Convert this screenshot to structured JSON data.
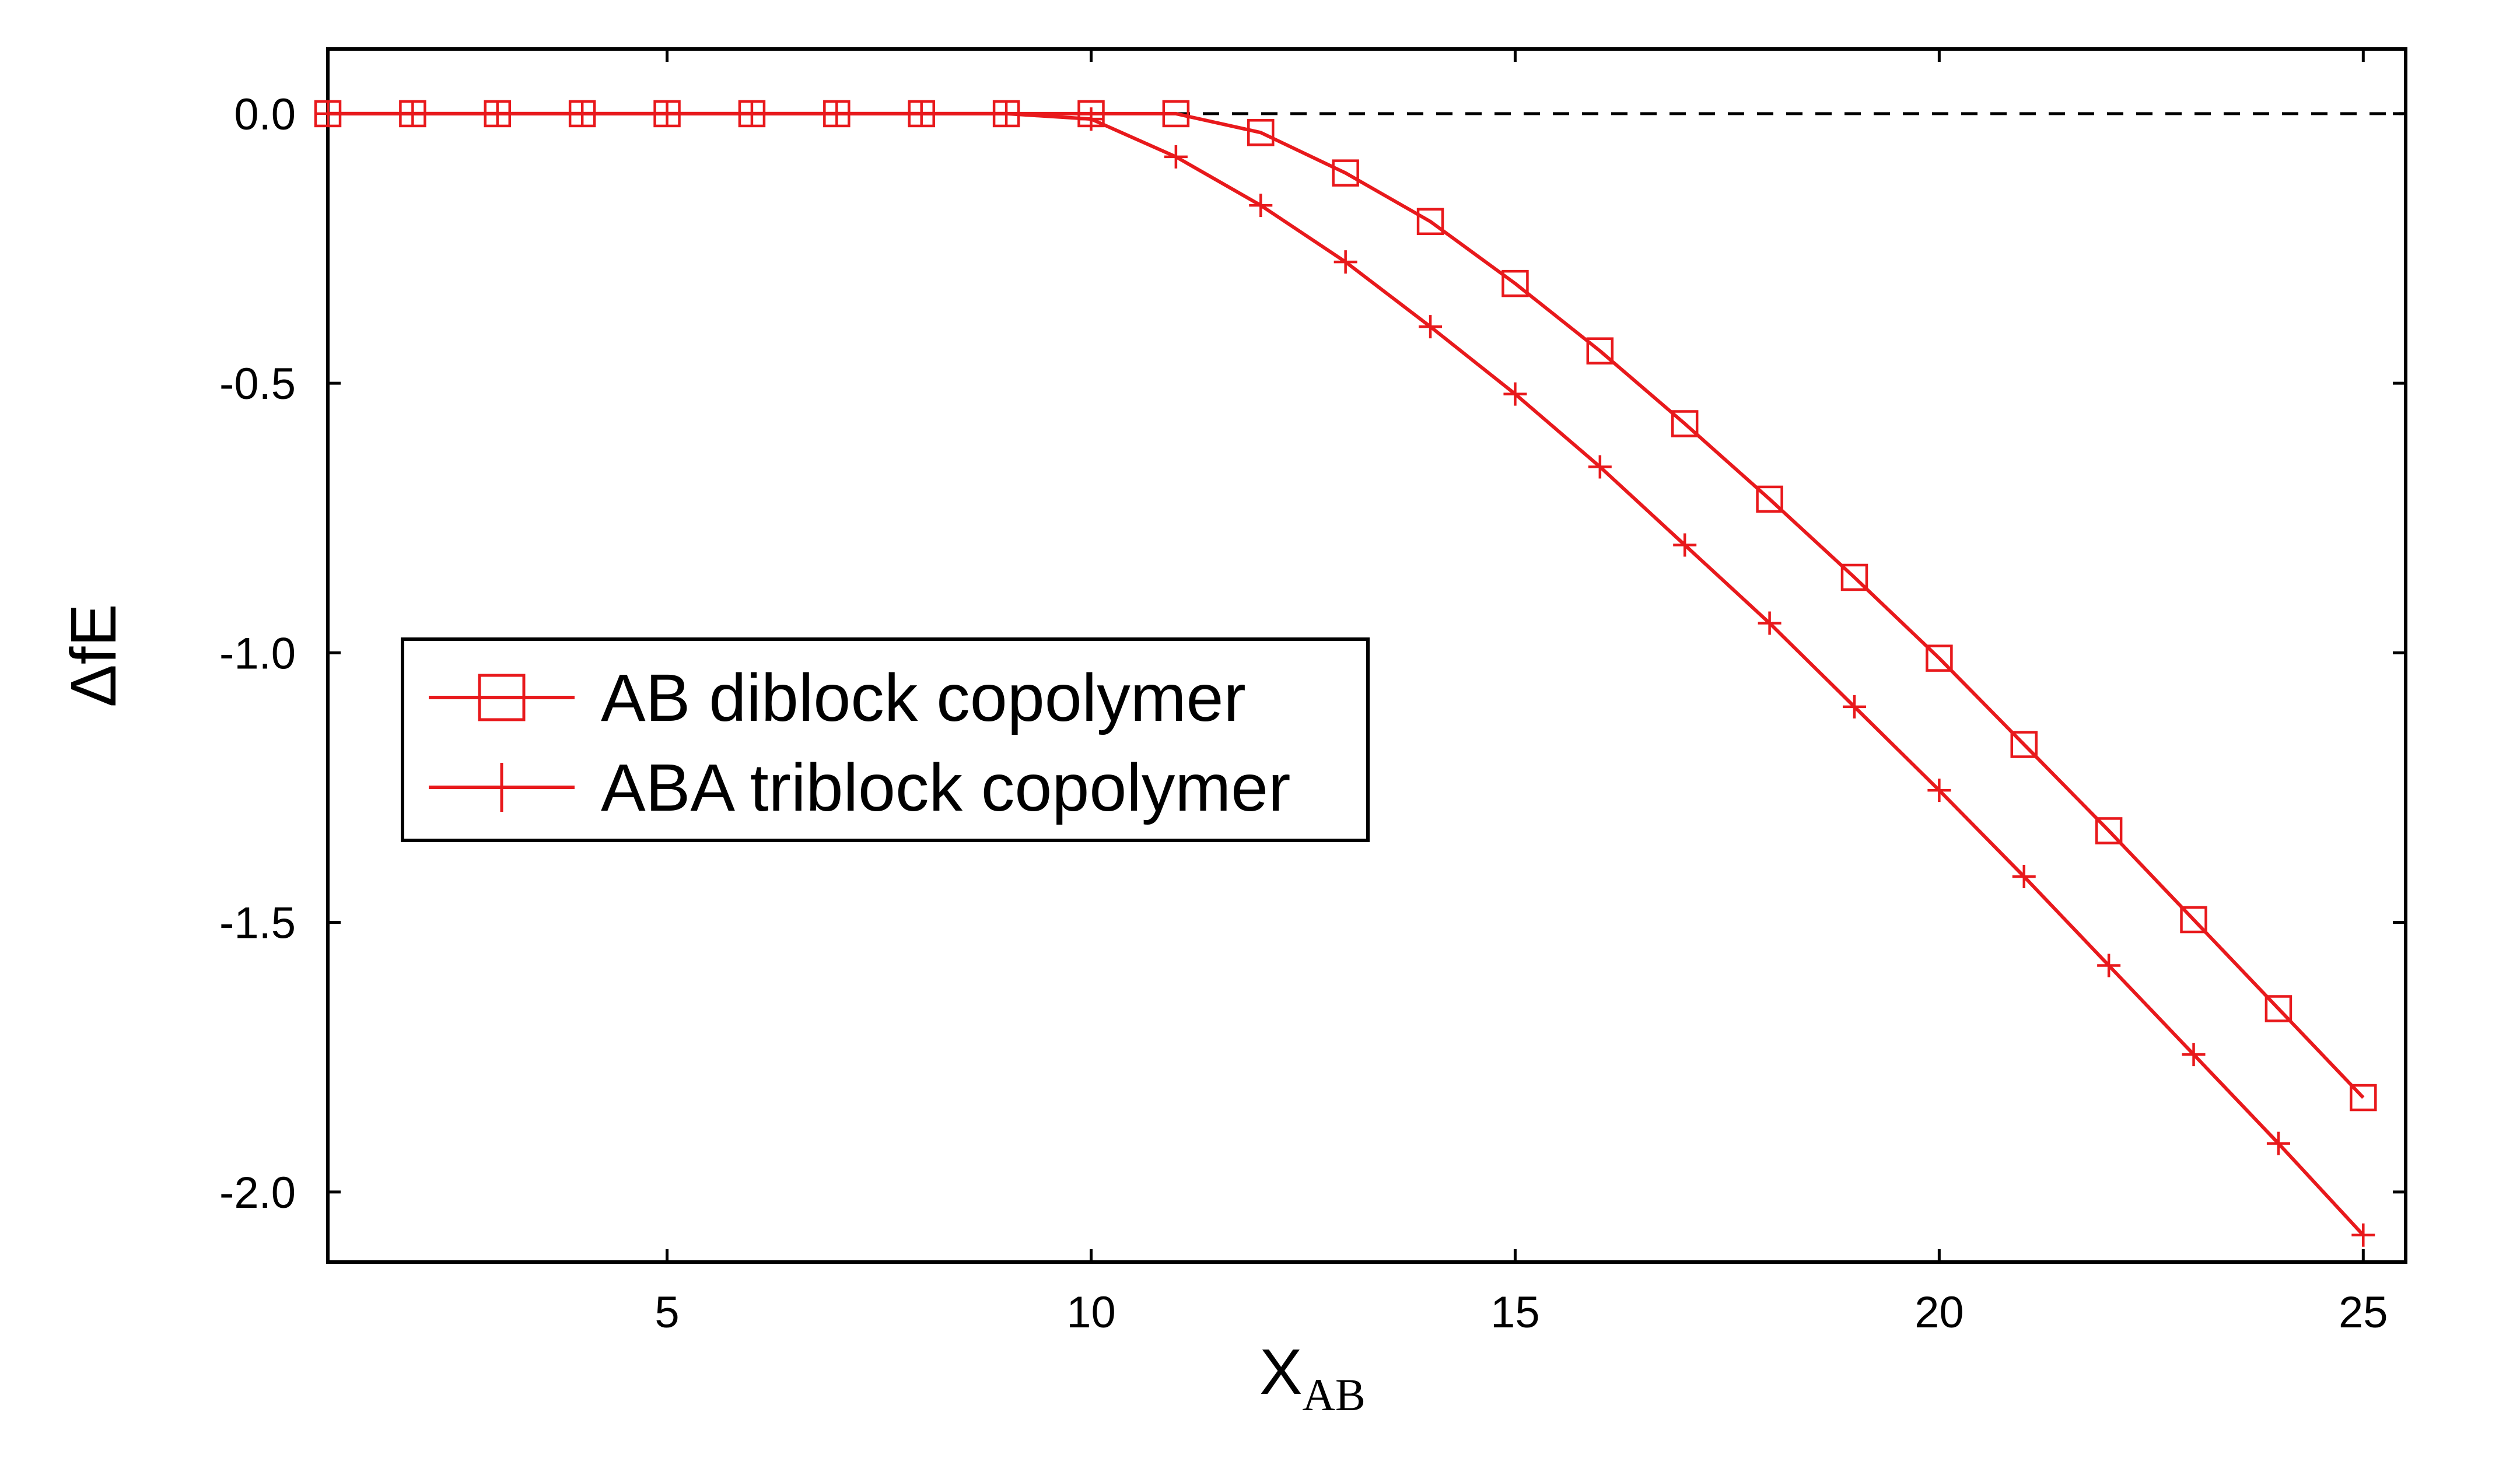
{
  "chart_data": {
    "type": "line",
    "xlabel": "X",
    "xlabel_sub": "AB",
    "ylabel": "ΔfE",
    "xlim": [
      1,
      25.5
    ],
    "ylim": [
      -2.13,
      0.12
    ],
    "xticks": [
      5,
      10,
      15,
      20,
      25
    ],
    "xtick_labels": [
      "5",
      "10",
      "15",
      "20",
      "25"
    ],
    "yticks": [
      0.0,
      -0.5,
      -1.0,
      -1.5,
      -2.0
    ],
    "ytick_labels": [
      "0.0",
      "-0.5",
      "-1.0",
      "-1.5",
      "-2.0"
    ],
    "reference_line": {
      "y": 0,
      "style": "dashed"
    },
    "grid": false,
    "legend_position": "center-left",
    "x": [
      1,
      2,
      3,
      4,
      5,
      6,
      7,
      8,
      9,
      10,
      11,
      12,
      13,
      14,
      15,
      16,
      17,
      18,
      19,
      20,
      21,
      22,
      23,
      24,
      25
    ],
    "series": [
      {
        "name": "AB diblock copolymer",
        "marker": "square",
        "color": "#e8191c",
        "values": [
          0,
          0,
          0,
          0,
          0,
          0,
          0,
          0,
          0,
          0,
          0,
          -0.035,
          -0.11,
          -0.2,
          -0.315,
          -0.44,
          -0.575,
          -0.715,
          -0.86,
          -1.01,
          -1.17,
          -1.33,
          -1.495,
          -1.66,
          -1.825
        ]
      },
      {
        "name": "ABA triblock copolymer",
        "marker": "plus",
        "color": "#e8191c",
        "values": [
          0,
          0,
          0,
          0,
          0,
          0,
          0,
          0,
          0,
          -0.01,
          -0.08,
          -0.17,
          -0.275,
          -0.395,
          -0.52,
          -0.655,
          -0.8,
          -0.945,
          -1.1,
          -1.255,
          -1.415,
          -1.58,
          -1.745,
          -1.91,
          -2.08
        ]
      }
    ]
  }
}
